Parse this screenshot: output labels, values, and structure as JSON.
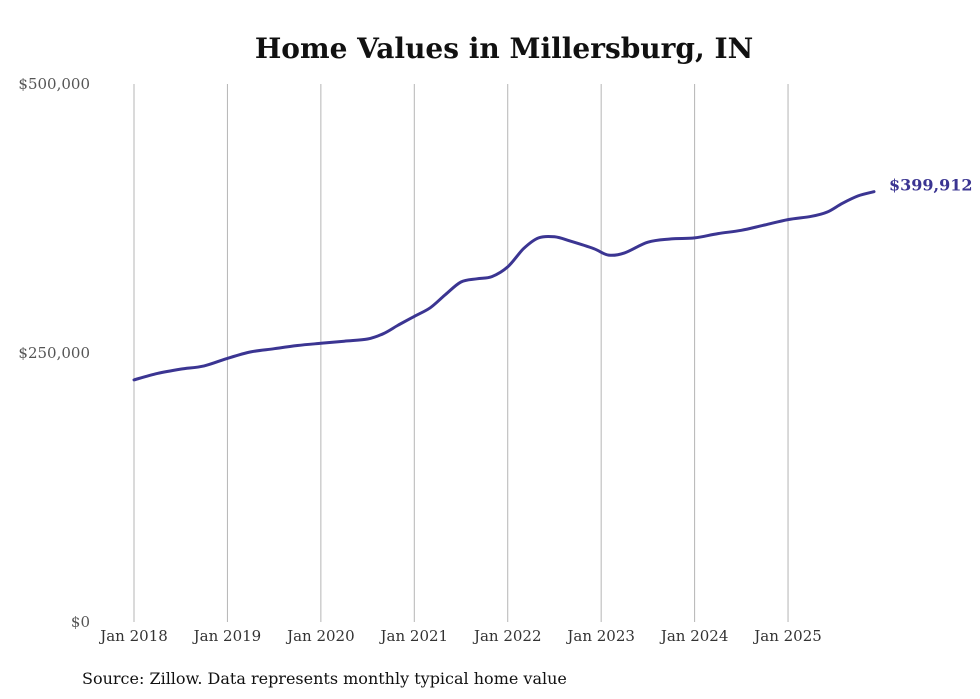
{
  "chart_data": {
    "type": "line",
    "title": "Home Values in Millersburg, IN",
    "source": "Source: Zillow. Data represents monthly typical home value",
    "ylim": [
      0,
      500000
    ],
    "yticks": [
      {
        "value": 0,
        "label": "$0"
      },
      {
        "value": 250000,
        "label": "$250,000"
      },
      {
        "value": 500000,
        "label": "$500,000"
      }
    ],
    "xticks": [
      {
        "value": 2018,
        "label": "Jan 2018"
      },
      {
        "value": 2019,
        "label": "Jan 2019"
      },
      {
        "value": 2020,
        "label": "Jan 2020"
      },
      {
        "value": 2021,
        "label": "Jan 2021"
      },
      {
        "value": 2022,
        "label": "Jan 2022"
      },
      {
        "value": 2023,
        "label": "Jan 2023"
      },
      {
        "value": 2024,
        "label": "Jan 2024"
      },
      {
        "value": 2025,
        "label": "Jan 2025"
      }
    ],
    "xlim": [
      2018,
      2025.92
    ],
    "grid": "vertical",
    "line_color": "#3b3592",
    "end_label": "$399,912",
    "series": [
      {
        "name": "Typical home value",
        "points": [
          [
            2018.0,
            225000
          ],
          [
            2018.25,
            231000
          ],
          [
            2018.5,
            235000
          ],
          [
            2018.75,
            238000
          ],
          [
            2019.0,
            245000
          ],
          [
            2019.25,
            251000
          ],
          [
            2019.5,
            254000
          ],
          [
            2019.75,
            257000
          ],
          [
            2020.0,
            259000
          ],
          [
            2020.25,
            261000
          ],
          [
            2020.5,
            263000
          ],
          [
            2020.67,
            268000
          ],
          [
            2020.83,
            276000
          ],
          [
            2021.0,
            284000
          ],
          [
            2021.17,
            292000
          ],
          [
            2021.33,
            304000
          ],
          [
            2021.5,
            316000
          ],
          [
            2021.67,
            319000
          ],
          [
            2021.83,
            321000
          ],
          [
            2022.0,
            330000
          ],
          [
            2022.17,
            347000
          ],
          [
            2022.33,
            357000
          ],
          [
            2022.5,
            358000
          ],
          [
            2022.67,
            354000
          ],
          [
            2022.92,
            347000
          ],
          [
            2023.08,
            341000
          ],
          [
            2023.25,
            343000
          ],
          [
            2023.5,
            353000
          ],
          [
            2023.75,
            356000
          ],
          [
            2024.0,
            357000
          ],
          [
            2024.25,
            361000
          ],
          [
            2024.5,
            364000
          ],
          [
            2024.75,
            369000
          ],
          [
            2025.0,
            374000
          ],
          [
            2025.25,
            377000
          ],
          [
            2025.42,
            381000
          ],
          [
            2025.58,
            389000
          ],
          [
            2025.75,
            396000
          ],
          [
            2025.92,
            399912
          ]
        ]
      }
    ]
  }
}
